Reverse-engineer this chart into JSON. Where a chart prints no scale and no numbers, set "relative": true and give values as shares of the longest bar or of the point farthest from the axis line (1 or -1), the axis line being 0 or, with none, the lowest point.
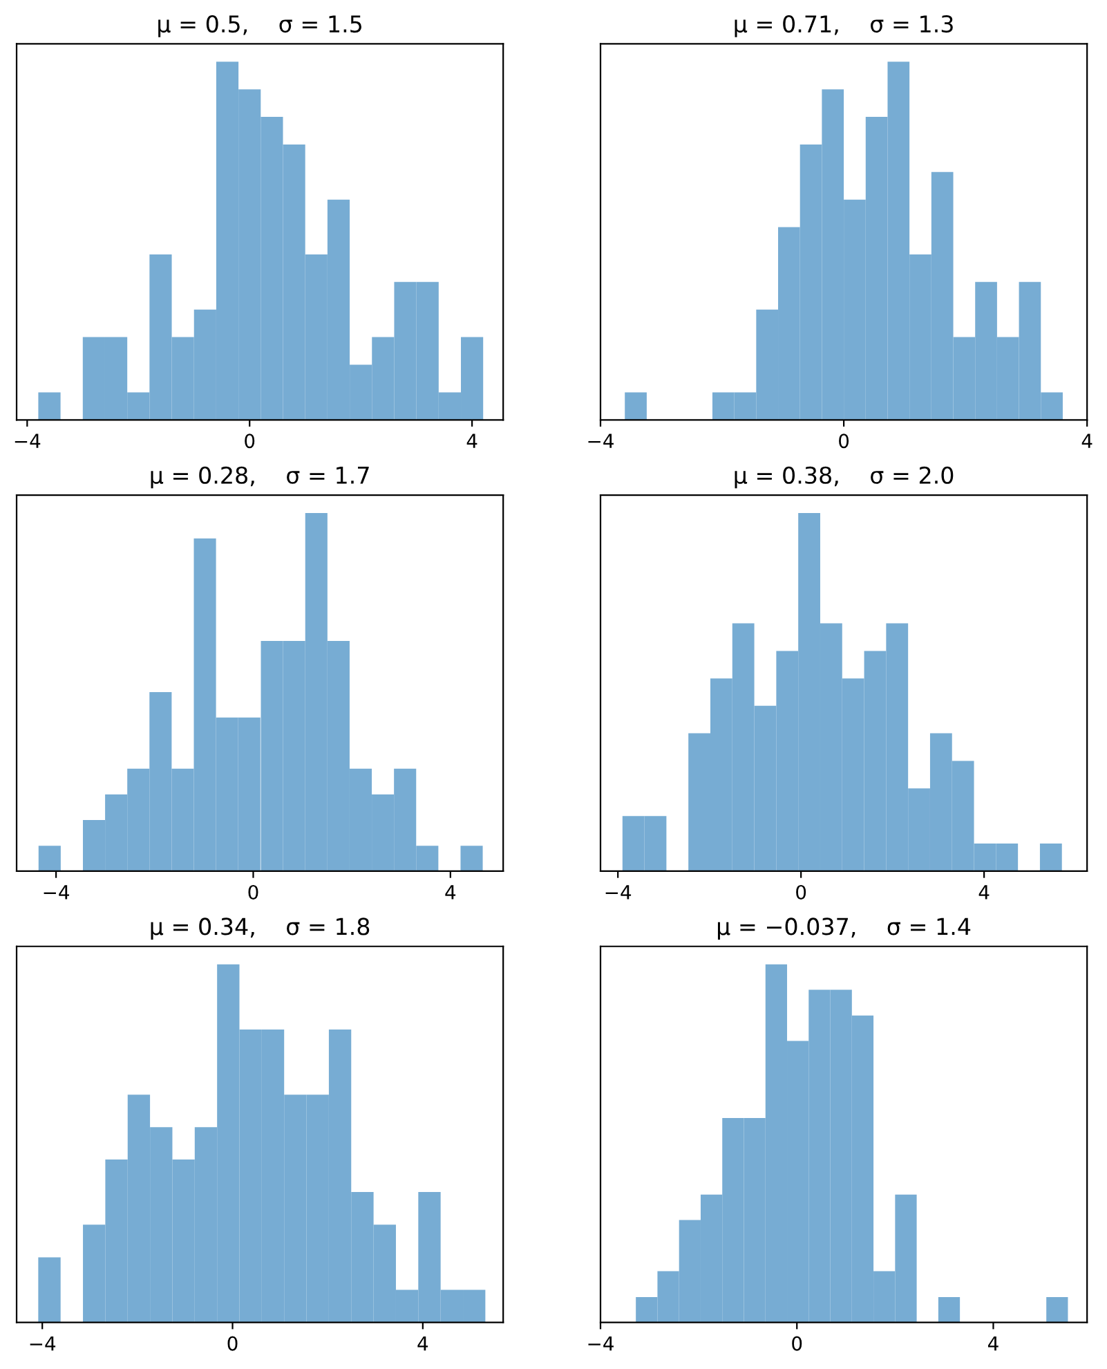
{
  "chart_data": [
    {
      "type": "bar",
      "title": "μ = 0.5,    σ = 1.5",
      "relative": true,
      "tick_labels": "x",
      "color": "#77acd3",
      "xlim": [
        -4.19,
        4.56
      ],
      "xticks": [
        -4,
        0,
        4
      ],
      "x": [
        -3.6,
        -3.2,
        -2.8,
        -2.4,
        -2.0,
        -1.6,
        -1.2,
        -0.8,
        -0.4,
        0.0,
        0.4,
        0.8,
        1.2,
        1.6,
        2.0,
        2.4,
        2.8,
        3.2,
        3.6,
        4.0
      ],
      "values": [
        0.077,
        0,
        0.231,
        0.231,
        0.077,
        0.462,
        0.231,
        0.308,
        1,
        0.923,
        0.846,
        0.769,
        0.462,
        0.615,
        0.154,
        0.231,
        0.385,
        0.385,
        0.077,
        0.231
      ]
    },
    {
      "type": "bar",
      "title": "μ = 0.71,    σ = 1.3",
      "relative": true,
      "tick_labels": "x",
      "color": "#77acd3",
      "xlim": [
        -4,
        4
      ],
      "xticks": [
        -4,
        0,
        4
      ],
      "x": [
        -3.42,
        -3.06,
        -2.7,
        -2.34,
        -1.98,
        -1.62,
        -1.26,
        -0.9,
        -0.54,
        -0.18,
        0.18,
        0.54,
        0.9,
        1.26,
        1.62,
        1.98,
        2.34,
        2.7,
        3.06,
        3.42
      ],
      "values": [
        0.077,
        0,
        0,
        0,
        0.077,
        0.077,
        0.308,
        0.538,
        0.769,
        0.923,
        0.615,
        0.846,
        1,
        0.462,
        0.692,
        0.231,
        0.385,
        0.231,
        0.385,
        0.077
      ]
    },
    {
      "type": "bar",
      "title": "μ = 0.28,    σ = 1.7",
      "relative": true,
      "tick_labels": "x",
      "color": "#77acd3",
      "xlim": [
        -4.8,
        5.07
      ],
      "xticks": [
        -4,
        0,
        4
      ],
      "x": [
        -4.13,
        -3.68,
        -3.23,
        -2.78,
        -2.33,
        -1.88,
        -1.43,
        -0.98,
        -0.53,
        -0.08,
        0.38,
        0.83,
        1.28,
        1.73,
        2.18,
        2.63,
        3.08,
        3.53,
        3.98,
        4.43
      ],
      "values": [
        0.071,
        0,
        0.143,
        0.214,
        0.286,
        0.5,
        0.286,
        0.929,
        0.429,
        0.429,
        0.643,
        0.643,
        1,
        0.643,
        0.286,
        0.214,
        0.286,
        0.071,
        0,
        0.071
      ]
    },
    {
      "type": "bar",
      "title": "μ = 0.38,    σ = 2.0",
      "relative": true,
      "tick_labels": "x",
      "color": "#77acd3",
      "xlim": [
        -4.38,
        6.25
      ],
      "xticks": [
        -4,
        0,
        4
      ],
      "x": [
        -3.66,
        -3.18,
        -2.7,
        -2.22,
        -1.74,
        -1.26,
        -0.78,
        -0.3,
        0.18,
        0.66,
        1.14,
        1.62,
        2.1,
        2.58,
        3.06,
        3.54,
        4.02,
        4.5,
        4.98,
        5.46
      ],
      "values": [
        0.154,
        0.154,
        0,
        0.385,
        0.538,
        0.692,
        0.462,
        0.615,
        1,
        0.692,
        0.538,
        0.615,
        0.692,
        0.231,
        0.385,
        0.308,
        0.077,
        0.077,
        0,
        0.077
      ]
    },
    {
      "type": "bar",
      "title": "μ = 0.34,    σ = 1.8",
      "relative": true,
      "tick_labels": "x",
      "color": "#77acd3",
      "xlim": [
        -4.54,
        5.69
      ],
      "xticks": [
        -4,
        0,
        4
      ],
      "x": [
        -3.85,
        -3.38,
        -2.91,
        -2.44,
        -1.97,
        -1.5,
        -1.03,
        -0.56,
        -0.09,
        0.38,
        0.85,
        1.32,
        1.79,
        2.26,
        2.73,
        3.2,
        3.67,
        4.14,
        4.61,
        5.08
      ],
      "values": [
        0.182,
        0,
        0.273,
        0.455,
        0.636,
        0.545,
        0.455,
        0.545,
        1,
        0.818,
        0.818,
        0.636,
        0.636,
        0.818,
        0.364,
        0.273,
        0.091,
        0.364,
        0.091,
        0.091
      ]
    },
    {
      "type": "bar",
      "title": "μ = −0.037,    σ = 1.4",
      "relative": true,
      "tick_labels": "x",
      "color": "#77acd3",
      "xlim": [
        -4,
        5.91
      ],
      "xticks": [
        -4,
        0,
        4
      ],
      "x": [
        -3.06,
        -2.62,
        -2.18,
        -1.74,
        -1.3,
        -0.86,
        -0.42,
        0.02,
        0.46,
        0.9,
        1.34,
        1.78,
        2.22,
        2.66,
        3.1,
        3.54,
        3.98,
        4.42,
        4.86,
        5.3
      ],
      "values": [
        0.071,
        0.143,
        0.286,
        0.357,
        0.571,
        0.571,
        1,
        0.786,
        0.929,
        0.929,
        0.857,
        0.143,
        0.357,
        0,
        0.071,
        0,
        0,
        0,
        0,
        0.071
      ]
    }
  ]
}
